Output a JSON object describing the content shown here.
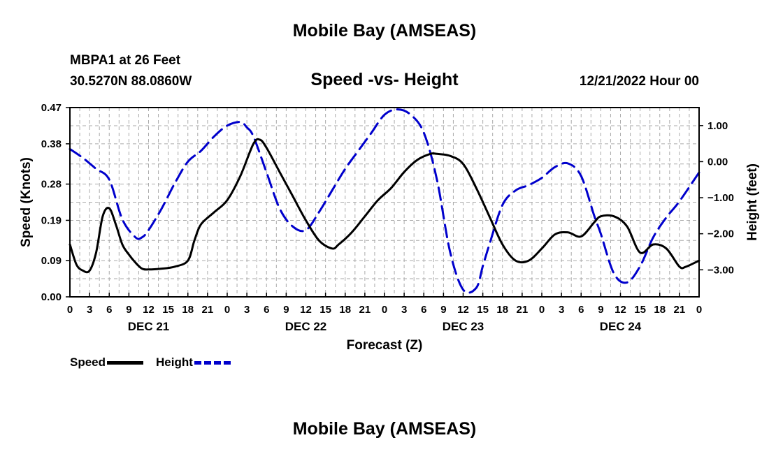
{
  "header": {
    "title": "Mobile Bay (AMSEAS)",
    "station": "MBPA1 at 26 Feet",
    "coords": "30.5270N  88.0860W",
    "chart_title": "Speed -vs- Height",
    "run_time": "12/21/2022 Hour 00"
  },
  "footer": {
    "title": "Mobile Bay (AMSEAS)"
  },
  "legend": {
    "speed_label": "Speed",
    "height_label": "Height"
  },
  "colors": {
    "speed": "#000000",
    "height": "#0000cc",
    "grid": "#aaaaaa"
  },
  "chart_data": {
    "type": "line",
    "title": "Speed -vs- Height",
    "xlabel": "Forecast (Z)",
    "ylabel": "Speed (Knots)",
    "y2label": "Height (feet)",
    "xlim": [
      0,
      96
    ],
    "ylim": [
      0,
      0.47
    ],
    "y2lim": [
      -3.75,
      1.5
    ],
    "x_ticks": [
      0,
      3,
      6,
      9,
      12,
      15,
      18,
      21,
      24,
      27,
      30,
      33,
      36,
      39,
      42,
      45,
      48,
      51,
      54,
      57,
      60,
      63,
      66,
      69,
      72,
      75,
      78,
      81,
      84,
      87,
      90,
      93,
      96
    ],
    "x_tick_labels": [
      "0",
      "3",
      "6",
      "9",
      "12",
      "15",
      "18",
      "21",
      "0",
      "3",
      "6",
      "9",
      "12",
      "15",
      "18",
      "21",
      "0",
      "3",
      "6",
      "9",
      "12",
      "15",
      "18",
      "21",
      "0",
      "3",
      "6",
      "9",
      "12",
      "15",
      "18",
      "21",
      "0"
    ],
    "day_labels": [
      {
        "label": "DEC 21",
        "x": 12
      },
      {
        "label": "DEC 22",
        "x": 36
      },
      {
        "label": "DEC 23",
        "x": 60
      },
      {
        "label": "DEC 24",
        "x": 84
      }
    ],
    "y_ticks": [
      0.0,
      0.09,
      0.19,
      0.28,
      0.38,
      0.47
    ],
    "y_tick_labels": [
      "0.00",
      "0.09",
      "0.19",
      "0.28",
      "0.38",
      "0.47"
    ],
    "y2_ticks": [
      -3,
      -2,
      -1,
      0,
      1
    ],
    "y2_tick_labels": [
      "−3.00",
      "−2.00",
      "−1.00",
      "0.00",
      "1.00"
    ],
    "series": [
      {
        "name": "Speed",
        "axis": "left",
        "x": [
          0,
          1,
          2,
          3,
          4,
          5,
          6,
          7,
          8,
          9,
          10,
          11,
          12,
          14,
          16,
          18,
          19,
          20,
          22,
          24,
          26,
          28,
          29,
          30,
          32,
          34,
          36,
          38,
          40,
          41,
          43,
          45,
          47,
          49,
          51,
          53,
          55,
          56,
          58,
          60,
          62,
          64,
          66,
          68,
          70,
          72,
          74,
          76,
          78,
          80,
          81,
          83,
          85,
          87,
          89,
          91,
          93,
          94,
          96
        ],
        "values": [
          0.13,
          0.08,
          0.065,
          0.065,
          0.11,
          0.2,
          0.22,
          0.18,
          0.13,
          0.105,
          0.085,
          0.07,
          0.068,
          0.07,
          0.075,
          0.09,
          0.14,
          0.18,
          0.21,
          0.24,
          0.3,
          0.38,
          0.39,
          0.37,
          0.31,
          0.25,
          0.19,
          0.14,
          0.12,
          0.13,
          0.16,
          0.2,
          0.24,
          0.27,
          0.31,
          0.34,
          0.355,
          0.355,
          0.35,
          0.33,
          0.27,
          0.2,
          0.13,
          0.09,
          0.09,
          0.12,
          0.155,
          0.16,
          0.15,
          0.185,
          0.2,
          0.2,
          0.175,
          0.11,
          0.13,
          0.12,
          0.075,
          0.075,
          0.09
        ]
      },
      {
        "name": "Height",
        "axis": "right",
        "x": [
          0,
          2,
          4,
          6,
          8,
          10,
          11,
          12,
          14,
          16,
          18,
          20,
          22,
          24,
          26,
          27,
          28,
          30,
          32,
          34,
          36,
          38,
          40,
          42,
          44,
          46,
          48,
          50,
          52,
          54,
          56,
          58,
          60,
          62,
          63,
          64,
          66,
          68,
          70,
          72,
          74,
          76,
          78,
          80,
          81,
          83,
          85,
          87,
          89,
          91,
          93,
          96
        ],
        "values": [
          0.35,
          0.1,
          -0.2,
          -0.5,
          -1.6,
          -2.1,
          -2.1,
          -1.9,
          -1.3,
          -0.6,
          0.0,
          0.3,
          0.7,
          1.0,
          1.1,
          0.95,
          0.7,
          -0.3,
          -1.3,
          -1.8,
          -1.9,
          -1.4,
          -0.8,
          -0.2,
          0.3,
          0.8,
          1.3,
          1.45,
          1.3,
          0.8,
          -0.5,
          -2.5,
          -3.55,
          -3.5,
          -2.9,
          -2.3,
          -1.2,
          -0.8,
          -0.65,
          -0.45,
          -0.15,
          -0.05,
          -0.4,
          -1.5,
          -2.0,
          -3.1,
          -3.35,
          -2.9,
          -2.1,
          -1.55,
          -1.1,
          -0.3
        ]
      }
    ]
  }
}
